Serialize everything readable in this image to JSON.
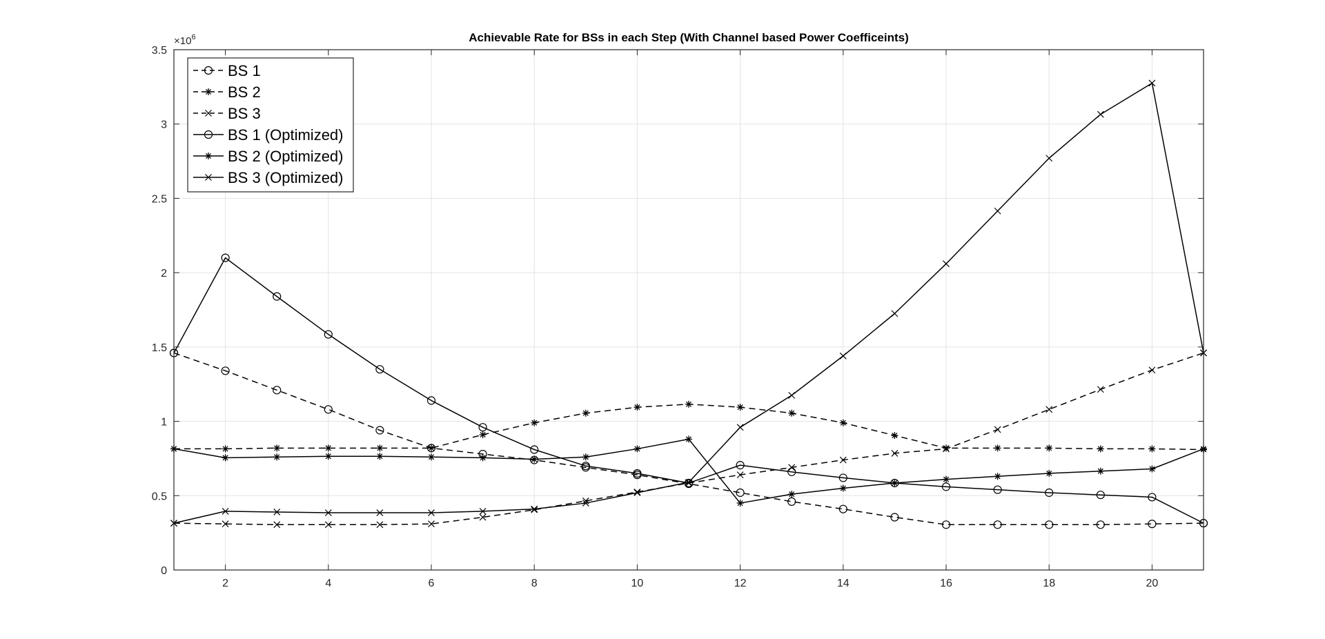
{
  "chart_data": {
    "type": "line",
    "title": "Achievable Rate for BSs in each Step (With Channel based Power Coefficeints)",
    "xlabel": "",
    "ylabel": "",
    "y_exponent_label": {
      "base": "×10",
      "exp": "6"
    },
    "xlim": [
      1,
      21
    ],
    "ylim": [
      0,
      3500000
    ],
    "x_ticks": [
      2,
      4,
      6,
      8,
      10,
      12,
      14,
      16,
      18,
      20
    ],
    "y_ticks": [
      0,
      500000,
      1000000,
      1500000,
      2000000,
      2500000,
      3000000,
      3500000
    ],
    "y_tick_labels": [
      "0",
      "0.5",
      "1",
      "1.5",
      "2",
      "2.5",
      "3",
      "3.5"
    ],
    "grid": true,
    "legend_position": "top-left",
    "x": [
      1,
      2,
      3,
      4,
      5,
      6,
      7,
      8,
      9,
      10,
      11,
      12,
      13,
      14,
      15,
      16,
      17,
      18,
      19,
      20,
      21
    ],
    "series": [
      {
        "name": "BS 1",
        "dash": true,
        "marker": "circle",
        "values": [
          1460000,
          1340000,
          1210000,
          1080000,
          940000,
          820000,
          780000,
          740000,
          690000,
          640000,
          580000,
          520000,
          460000,
          410000,
          355000,
          305000,
          305000,
          305000,
          305000,
          310000,
          315000
        ]
      },
      {
        "name": "BS 2",
        "dash": true,
        "marker": "star",
        "values": [
          815000,
          815000,
          820000,
          820000,
          820000,
          820000,
          910000,
          990000,
          1055000,
          1095000,
          1115000,
          1095000,
          1055000,
          990000,
          905000,
          820000,
          820000,
          820000,
          815000,
          815000,
          810000
        ]
      },
      {
        "name": "BS 3",
        "dash": true,
        "marker": "x",
        "values": [
          315000,
          310000,
          305000,
          305000,
          305000,
          310000,
          355000,
          405000,
          465000,
          525000,
          585000,
          640000,
          690000,
          740000,
          785000,
          815000,
          945000,
          1080000,
          1215000,
          1345000,
          1460000
        ]
      },
      {
        "name": "BS 1 (Optimized)",
        "dash": false,
        "marker": "circle",
        "values": [
          1460000,
          2100000,
          1840000,
          1585000,
          1350000,
          1140000,
          960000,
          810000,
          700000,
          650000,
          585000,
          705000,
          660000,
          620000,
          585000,
          560000,
          540000,
          520000,
          505000,
          490000,
          315000
        ]
      },
      {
        "name": "BS 2 (Optimized)",
        "dash": false,
        "marker": "star",
        "values": [
          815000,
          755000,
          760000,
          765000,
          765000,
          760000,
          755000,
          745000,
          760000,
          815000,
          880000,
          450000,
          510000,
          550000,
          585000,
          610000,
          630000,
          650000,
          665000,
          680000,
          815000
        ]
      },
      {
        "name": "BS 3 (Optimized)",
        "dash": false,
        "marker": "x",
        "values": [
          315000,
          395000,
          390000,
          385000,
          385000,
          385000,
          395000,
          410000,
          450000,
          520000,
          590000,
          960000,
          1175000,
          1440000,
          1725000,
          2060000,
          2415000,
          2770000,
          3065000,
          3275000,
          1460000
        ]
      }
    ]
  }
}
